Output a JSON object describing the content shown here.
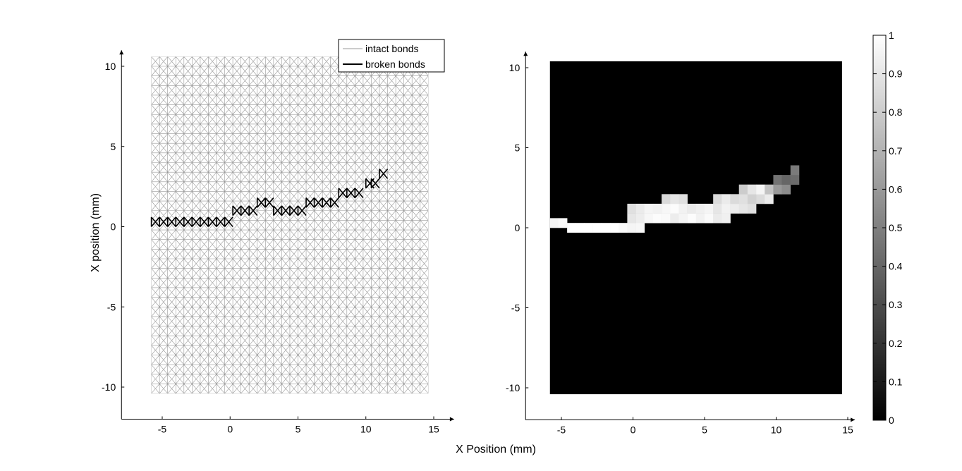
{
  "figure": {
    "shared_xlabel": "X Position (mm)"
  },
  "chart_data": [
    {
      "type": "lattice",
      "ylabel": "X position (mm)",
      "xlim": [
        -8,
        16.5
      ],
      "ylim": [
        -12,
        11
      ],
      "xticks": [
        -5,
        0,
        5,
        10,
        15
      ],
      "yticks": [
        -10,
        -5,
        0,
        5,
        10
      ],
      "lattice_extent": {
        "x": [
          -5.8,
          14.6
        ],
        "y": [
          -10.4,
          10.6
        ]
      },
      "lattice_spacing": 0.6,
      "legend": {
        "position": "top-right",
        "entries": [
          {
            "label": "intact bonds",
            "color": "#999999"
          },
          {
            "label": "broken bonds",
            "color": "#000000"
          }
        ]
      },
      "broken_bond_segments": [
        {
          "x": -5.8,
          "y": 0.3
        },
        {
          "x": -5.2,
          "y": 0.3
        },
        {
          "x": -4.6,
          "y": 0.3
        },
        {
          "x": -4.0,
          "y": 0.3
        },
        {
          "x": -3.4,
          "y": 0.3
        },
        {
          "x": -2.8,
          "y": 0.3
        },
        {
          "x": -2.2,
          "y": 0.3
        },
        {
          "x": -1.6,
          "y": 0.3
        },
        {
          "x": -1.0,
          "y": 0.3
        },
        {
          "x": -0.4,
          "y": 0.3
        },
        {
          "x": 0.2,
          "y": 1.0
        },
        {
          "x": 0.8,
          "y": 1.0
        },
        {
          "x": 1.4,
          "y": 1.0
        },
        {
          "x": 2.0,
          "y": 1.5
        },
        {
          "x": 2.6,
          "y": 1.5
        },
        {
          "x": 3.2,
          "y": 1.0
        },
        {
          "x": 3.8,
          "y": 1.0
        },
        {
          "x": 4.4,
          "y": 1.0
        },
        {
          "x": 5.0,
          "y": 1.0
        },
        {
          "x": 5.6,
          "y": 1.5
        },
        {
          "x": 6.2,
          "y": 1.5
        },
        {
          "x": 6.8,
          "y": 1.5
        },
        {
          "x": 7.4,
          "y": 1.5
        },
        {
          "x": 8.0,
          "y": 2.1
        },
        {
          "x": 8.6,
          "y": 2.1
        },
        {
          "x": 9.2,
          "y": 2.1
        },
        {
          "x": 10.0,
          "y": 2.7
        },
        {
          "x": 10.4,
          "y": 2.7
        },
        {
          "x": 11.0,
          "y": 3.3
        }
      ]
    },
    {
      "type": "heatmap",
      "xlim": [
        -7.5,
        15.5
      ],
      "ylim": [
        -12,
        11
      ],
      "xticks": [
        -5,
        0,
        5,
        10,
        15
      ],
      "yticks": [
        -10,
        -5,
        0,
        5,
        10
      ],
      "extent": {
        "x": [
          -5.8,
          14.6
        ],
        "y": [
          -10.4,
          10.4
        ]
      },
      "cell_size": 0.6,
      "background_value": 0,
      "colormap": "gray",
      "cells": [
        {
          "x": -5.8,
          "y": 0.0,
          "v": 0.96
        },
        {
          "x": -5.2,
          "y": 0.0,
          "v": 0.98
        },
        {
          "x": -4.6,
          "y": -0.3,
          "v": 1.0
        },
        {
          "x": -4.0,
          "y": -0.3,
          "v": 1.0
        },
        {
          "x": -3.4,
          "y": -0.3,
          "v": 1.0
        },
        {
          "x": -2.8,
          "y": -0.3,
          "v": 1.0
        },
        {
          "x": -2.2,
          "y": -0.3,
          "v": 1.0
        },
        {
          "x": -1.6,
          "y": -0.3,
          "v": 1.0
        },
        {
          "x": -1.0,
          "y": -0.3,
          "v": 0.98
        },
        {
          "x": -0.4,
          "y": -0.3,
          "v": 0.96
        },
        {
          "x": 0.2,
          "y": -0.3,
          "v": 0.97
        },
        {
          "x": 0.2,
          "y": 0.3,
          "v": 0.93
        },
        {
          "x": -0.4,
          "y": 0.3,
          "v": 0.9
        },
        {
          "x": 0.8,
          "y": 0.3,
          "v": 0.97
        },
        {
          "x": 1.4,
          "y": 0.3,
          "v": 0.99
        },
        {
          "x": 2.0,
          "y": 0.3,
          "v": 0.98
        },
        {
          "x": 2.6,
          "y": 0.3,
          "v": 0.93
        },
        {
          "x": 3.2,
          "y": 0.3,
          "v": 0.96
        },
        {
          "x": 3.8,
          "y": 0.3,
          "v": 0.99
        },
        {
          "x": 4.4,
          "y": 0.3,
          "v": 0.95
        },
        {
          "x": 5.0,
          "y": 0.3,
          "v": 0.98
        },
        {
          "x": 5.6,
          "y": 0.3,
          "v": 0.92
        },
        {
          "x": 6.2,
          "y": 0.3,
          "v": 0.94
        },
        {
          "x": -0.4,
          "y": 0.9,
          "v": 0.88
        },
        {
          "x": 0.2,
          "y": 0.9,
          "v": 0.92
        },
        {
          "x": 0.8,
          "y": 0.9,
          "v": 0.96
        },
        {
          "x": 1.4,
          "y": 0.9,
          "v": 0.95
        },
        {
          "x": 2.0,
          "y": 0.9,
          "v": 0.97
        },
        {
          "x": 2.6,
          "y": 0.9,
          "v": 0.99
        },
        {
          "x": 3.2,
          "y": 0.9,
          "v": 0.95
        },
        {
          "x": 3.8,
          "y": 0.9,
          "v": 0.92
        },
        {
          "x": 4.4,
          "y": 0.9,
          "v": 0.94
        },
        {
          "x": 5.0,
          "y": 0.9,
          "v": 0.96
        },
        {
          "x": 5.6,
          "y": 0.9,
          "v": 0.9
        },
        {
          "x": 6.2,
          "y": 0.9,
          "v": 0.95
        },
        {
          "x": 6.8,
          "y": 0.9,
          "v": 0.93
        },
        {
          "x": 7.4,
          "y": 0.9,
          "v": 0.9
        },
        {
          "x": 8.0,
          "y": 0.9,
          "v": 0.88
        },
        {
          "x": 2.0,
          "y": 1.5,
          "v": 0.85
        },
        {
          "x": 2.6,
          "y": 1.5,
          "v": 0.9
        },
        {
          "x": 3.2,
          "y": 1.5,
          "v": 0.88
        },
        {
          "x": 5.6,
          "y": 1.5,
          "v": 0.86
        },
        {
          "x": 6.2,
          "y": 1.5,
          "v": 0.92
        },
        {
          "x": 6.8,
          "y": 1.5,
          "v": 0.86
        },
        {
          "x": 7.4,
          "y": 1.5,
          "v": 0.88
        },
        {
          "x": 8.0,
          "y": 1.5,
          "v": 0.82
        },
        {
          "x": 8.6,
          "y": 1.5,
          "v": 0.86
        },
        {
          "x": 9.2,
          "y": 1.5,
          "v": 0.92
        },
        {
          "x": 7.4,
          "y": 2.1,
          "v": 0.8
        },
        {
          "x": 8.0,
          "y": 2.1,
          "v": 0.9
        },
        {
          "x": 8.6,
          "y": 2.1,
          "v": 0.96
        },
        {
          "x": 9.2,
          "y": 2.1,
          "v": 0.76
        },
        {
          "x": 9.8,
          "y": 2.1,
          "v": 0.6
        },
        {
          "x": 10.4,
          "y": 2.1,
          "v": 0.55
        },
        {
          "x": 9.8,
          "y": 2.7,
          "v": 0.45
        },
        {
          "x": 10.4,
          "y": 2.7,
          "v": 0.4
        },
        {
          "x": 11.0,
          "y": 2.7,
          "v": 0.42
        },
        {
          "x": 11.0,
          "y": 3.3,
          "v": 0.48
        }
      ],
      "colorbar": {
        "position": "right",
        "range": [
          0,
          1
        ],
        "ticks": [
          0,
          0.1,
          0.2,
          0.3,
          0.4,
          0.5,
          0.6,
          0.7,
          0.8,
          0.9,
          1
        ],
        "tick_labels": [
          "0",
          "0.1",
          "0.2",
          "0.3",
          "0.4",
          "0.5",
          "0.6",
          "0.7",
          "0.8",
          "0.9",
          "1"
        ]
      }
    }
  ]
}
